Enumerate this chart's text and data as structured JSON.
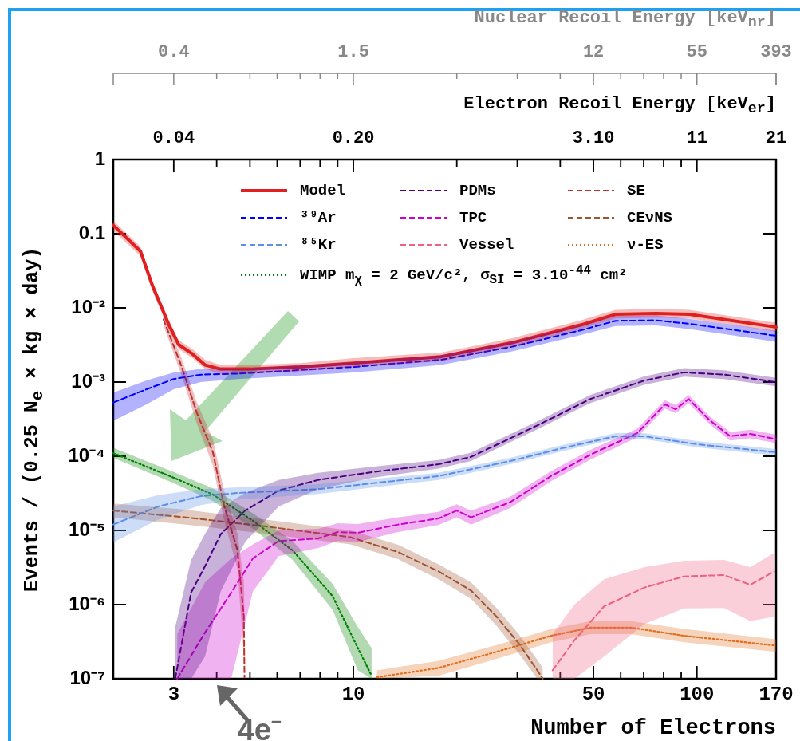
{
  "chart_data": {
    "type": "line",
    "xlabel": "Number of Electrons",
    "ylabel": "Events / (0.25 N$_{e}$ × kg × day)",
    "log": "xy",
    "xlim": [
      2,
      170
    ],
    "xticks": [
      3,
      {
        "value": 4,
        "label": null
      },
      {
        "value": 5,
        "label": null
      },
      {
        "value": 6,
        "label": null
      },
      {
        "value": 7,
        "label": null
      },
      {
        "value": 8,
        "label": null
      },
      {
        "value": 9,
        "label": null
      },
      10,
      {
        "value": 20,
        "label": null
      },
      {
        "value": 30,
        "label": null
      },
      {
        "value": 40,
        "label": null
      },
      50,
      {
        "value": 60,
        "label": null
      },
      {
        "value": 70,
        "label": null
      },
      {
        "value": 80,
        "label": null
      },
      {
        "value": 90,
        "label": null
      },
      100,
      170
    ],
    "ylim": [
      1e-07,
      1
    ],
    "yticks": [
      {
        "value": 1e-07,
        "label": "10⁻⁷"
      },
      {
        "value": 1e-06,
        "label": "10⁻⁶"
      },
      {
        "value": 1e-05,
        "label": "10⁻⁵"
      },
      {
        "value": 0.0001,
        "label": "10⁻⁴"
      },
      {
        "value": 0.001,
        "label": "10⁻³"
      },
      {
        "value": 0.01,
        "label": "10⁻²"
      },
      0.1,
      1
    ],
    "legend": "top",
    "annotations": [
      "Nuclear Recoil Energy [keV$_{nr}$]",
      "0.4",
      "1.5",
      "12",
      "55",
      "393",
      "Electron Recoil Energy [keV$_{er}$]",
      "0.04",
      "0.20",
      "3.10",
      "11",
      "21",
      {
        "text": "4e⁻",
        "x": 4,
        "y": 1e-07
      }
    ],
    "series": [
      {
        "name": "Model",
        "color": "#e02020",
        "line_style": "solid",
        "x": [
          2,
          2.4,
          2.6,
          2.9,
          3.1,
          3.4,
          3.7,
          4.1,
          5,
          7,
          10,
          18,
          29,
          46,
          58,
          76,
          95,
          170
        ],
        "values": [
          0.13,
          0.058,
          0.02,
          0.006,
          0.0032,
          0.0024,
          0.0017,
          0.0015,
          0.0015,
          0.0016,
          0.0018,
          0.0022,
          0.0034,
          0.0059,
          0.0082,
          0.0084,
          0.0082,
          0.0055
        ],
        "lower": [
          0.11,
          0.05,
          0.017,
          0.0052,
          0.0028,
          0.0021,
          0.0015,
          0.0013,
          0.0013,
          0.0014,
          0.0016,
          0.0019,
          0.003,
          0.0052,
          0.0072,
          0.0074,
          0.0072,
          0.0048
        ],
        "upper": [
          0.15,
          0.067,
          0.023,
          0.0069,
          0.0037,
          0.0028,
          0.002,
          0.0017,
          0.0017,
          0.0018,
          0.0021,
          0.0025,
          0.0039,
          0.0068,
          0.0094,
          0.0097,
          0.0094,
          0.0063
        ]
      },
      {
        "name": "³⁹Ar",
        "color": "#0000ff",
        "line_style": "dashed",
        "x": [
          2,
          2.5,
          3,
          3.6,
          4.6,
          10,
          18,
          29,
          46,
          58,
          76,
          95,
          170
        ],
        "values": [
          0.00053,
          0.0008,
          0.0011,
          0.00126,
          0.0013,
          0.0016,
          0.002,
          0.003,
          0.005,
          0.0067,
          0.0068,
          0.0061,
          0.0042
        ],
        "lower": [
          0.0003,
          0.0005,
          0.0008,
          0.001,
          0.0011,
          0.00135,
          0.0017,
          0.0026,
          0.0043,
          0.0057,
          0.0058,
          0.0052,
          0.0035
        ],
        "upper": [
          0.00072,
          0.00105,
          0.00135,
          0.0015,
          0.0015,
          0.00185,
          0.0023,
          0.0035,
          0.0058,
          0.0078,
          0.0079,
          0.0071,
          0.0049
        ]
      },
      {
        "name": "⁸⁵Kr",
        "color": "#5b8fe8",
        "line_style": "dashed",
        "x": [
          2,
          2.7,
          3.6,
          4.6,
          7.9,
          17.7,
          28.6,
          41,
          58,
          70,
          100,
          170
        ],
        "values": [
          1.2e-05,
          2.1e-05,
          2.9e-05,
          3.2e-05,
          3.6e-05,
          5.4e-05,
          8.6e-05,
          0.00013,
          0.000186,
          0.000186,
          0.000145,
          0.000113
        ],
        "lower": [
          6.9e-06,
          1.4e-05,
          2.2e-05,
          2.6e-05,
          3.1e-05,
          4.8e-05,
          7.8e-05,
          0.000118,
          0.00017,
          0.00017,
          0.000132,
          0.000102
        ],
        "upper": [
          2.1e-05,
          3e-05,
          3.6e-05,
          3.8e-05,
          4.2e-05,
          6e-05,
          9.5e-05,
          0.000143,
          0.000205,
          0.000205,
          0.00016,
          0.000125
        ]
      },
      {
        "name": "PDMs",
        "color": "#4b0082",
        "line_style": "dashed",
        "x": [
          3.03,
          3.37,
          3.7,
          4.11,
          4.84,
          6.06,
          7.9,
          11.3,
          17.7,
          22,
          34.3,
          48.9,
          70.4,
          91.8,
          120,
          170
        ],
        "values": [
          1e-07,
          1.45e-06,
          3.3e-06,
          8.9e-06,
          1.85e-05,
          3.45e-05,
          4.8e-05,
          6.1e-05,
          7.8e-05,
          9.8e-05,
          0.00026,
          0.00059,
          0.00105,
          0.00135,
          0.00126,
          0.001
        ],
        "lower": [
          1e-07,
          1e-07,
          2e-07,
          1.5e-06,
          7e-06,
          2.1e-05,
          3.6e-05,
          5.1e-05,
          6.8e-05,
          8.6e-05,
          0.00023,
          0.00052,
          0.00092,
          0.00118,
          0.0011,
          0.00088
        ],
        "upper": [
          5e-07,
          4e-06,
          9e-06,
          2e-05,
          3.2e-05,
          4.8e-05,
          6e-05,
          7.2e-05,
          8.9e-05,
          0.000112,
          0.000295,
          0.00067,
          0.0012,
          0.00154,
          0.00144,
          0.00114
        ]
      },
      {
        "name": "TPC",
        "color": "#cc00cc",
        "line_style": "dashed",
        "x": [
          3.07,
          3.7,
          4.41,
          5.1,
          6.06,
          7.9,
          9,
          10.3,
          13.5,
          17.7,
          20,
          22,
          28.6,
          37.6,
          49,
          67,
          80.7,
          86.7,
          94.6,
          109,
          125,
          143,
          170
        ],
        "values": [
          1e-07,
          4.2e-07,
          1.45e-06,
          4.2e-06,
          7.2e-06,
          7.8e-06,
          9.5e-06,
          9.3e-06,
          1.2e-05,
          1.45e-05,
          1.85e-05,
          1.5e-05,
          2.4e-05,
          5.4e-05,
          0.000105,
          0.000205,
          0.0005,
          0.00043,
          0.00059,
          0.000305,
          0.000186,
          0.0002,
          0.00017
        ],
        "lower": [
          1e-07,
          1e-07,
          1e-07,
          1.5e-06,
          4.5e-06,
          5.8e-06,
          7.2e-06,
          7e-06,
          9.5e-06,
          1.18e-05,
          1.5e-05,
          1.2e-05,
          2e-05,
          4.6e-05,
          9e-05,
          0.00018,
          0.00044,
          0.00038,
          0.00052,
          0.00027,
          0.000163,
          0.000175,
          0.00015
        ],
        "upper": [
          4e-07,
          2e-06,
          4.2e-06,
          6.5e-06,
          1e-05,
          1.05e-05,
          1.25e-05,
          1.22e-05,
          1.5e-05,
          1.78e-05,
          2.25e-05,
          1.85e-05,
          2.85e-05,
          6.3e-05,
          0.000122,
          0.000235,
          0.00057,
          0.00049,
          0.00067,
          0.000345,
          0.000212,
          0.000228,
          0.000195
        ]
      },
      {
        "name": "Vessel",
        "color": "#f06080",
        "line_style": "dashed",
        "x": [
          38,
          44,
          53.7,
          70.4,
          91.8,
          120,
          143,
          168
        ],
        "values": [
          1.3e-07,
          3.3e-07,
          9.5e-07,
          1.7e-06,
          2.4e-06,
          2.5e-06,
          1.85e-06,
          2.8e-06
        ],
        "lower": [
          1e-07,
          1e-07,
          2e-07,
          5.5e-07,
          8.9e-07,
          9e-07,
          6e-07,
          6.9e-07
        ],
        "upper": [
          4e-07,
          1e-06,
          2.2e-06,
          3.2e-06,
          3.9e-06,
          4e-06,
          3.2e-06,
          5e-06
        ]
      },
      {
        "name": "SE",
        "color": "#c0302e",
        "line_style": "dashed",
        "x": [
          2.8,
          3.15,
          3.5,
          3.9,
          4.2,
          4.6,
          4.8,
          4.82
        ],
        "values": [
          0.007,
          0.0017,
          0.00039,
          0.000113,
          2.2e-05,
          5.4e-06,
          6.9e-07,
          1.05e-07
        ],
        "lower": [
          0.0058,
          0.0013,
          0.00028,
          7.5e-05,
          1.4e-05,
          3e-06,
          2e-07,
          1e-07
        ],
        "upper": [
          0.0084,
          0.0022,
          0.00054,
          0.00017,
          3.5e-05,
          9e-06,
          2e-06,
          1e-06
        ]
      },
      {
        "name": "CEνNS",
        "color": "#a0522d",
        "line_style": "dashed",
        "x": [
          2,
          3.25,
          5.57,
          9.8,
          13.5,
          17.7,
          22,
          26.1,
          30.3,
          34.3,
          35.6
        ],
        "values": [
          1.85e-05,
          1.5e-05,
          1.13e-05,
          8.1e-06,
          5.1e-06,
          2.8e-06,
          1.55e-06,
          6.9e-07,
          3e-07,
          1.3e-07,
          1e-07
        ],
        "lower": [
          1.5e-05,
          1.2e-05,
          9e-06,
          6.5e-06,
          4.1e-06,
          2.2e-06,
          1.2e-06,
          5.2e-07,
          2.2e-07,
          1e-07,
          1e-07
        ],
        "upper": [
          2.3e-05,
          1.9e-05,
          1.4e-05,
          1e-05,
          6.4e-06,
          3.5e-06,
          2e-06,
          9e-07,
          4e-07,
          1.8e-07,
          1.4e-07
        ]
      },
      {
        "name": "ν-ES",
        "color": "#e07020",
        "line_style": "dotted",
        "x": [
          11.7,
          17.7,
          28.6,
          37.6,
          49,
          64.2,
          91.8,
          170
        ],
        "values": [
          1.05e-07,
          1.4e-07,
          2.6e-07,
          3.8e-07,
          4.9e-07,
          4.9e-07,
          3.8e-07,
          2.8e-07
        ],
        "lower": [
          1e-07,
          1.1e-07,
          2.1e-07,
          3.1e-07,
          4e-07,
          4e-07,
          3.1e-07,
          2.3e-07
        ],
        "upper": [
          1.3e-07,
          1.75e-07,
          3.2e-07,
          4.7e-07,
          6e-07,
          6e-07,
          4.7e-07,
          3.4e-07
        ]
      },
      {
        "name": "WIMP m$_{χ}$ = 2 GeV/c², σ$_{SI}$ = 3.10$^{-44}$ cm²",
        "color": "#008000",
        "line_style": "dotted",
        "x": [
          2,
          2.98,
          3.9,
          5.1,
          6.65,
          8.7,
          10.3,
          11.3
        ],
        "values": [
          0.00011,
          5.2e-05,
          3.05e-05,
          1.35e-05,
          5.4e-06,
          1.3e-06,
          2.6e-07,
          1.1e-07
        ],
        "lower": [
          9.5e-05,
          4.4e-05,
          2.5e-05,
          1.05e-05,
          4e-06,
          8.5e-07,
          1.3e-07,
          1e-07
        ],
        "upper": [
          0.00013,
          6.2e-05,
          3.7e-05,
          1.7e-05,
          7.2e-06,
          1.9e-06,
          5e-07,
          2.6e-07
        ]
      }
    ]
  }
}
